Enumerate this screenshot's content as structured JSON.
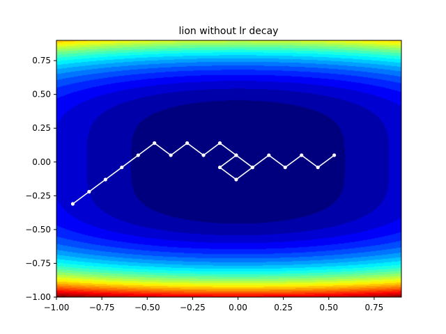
{
  "chart_data": {
    "type": "line",
    "title": "lion without lr decay",
    "xlabel": "",
    "ylabel": "",
    "xlim": [
      -1.0,
      0.9
    ],
    "ylim": [
      -1.0,
      0.9
    ],
    "grid": false,
    "background": "filled contour (jet colormap)",
    "colormap": "jet",
    "line_color": "#ffffff",
    "x_ticks": [
      "−1.00",
      "−0.75",
      "−0.50",
      "−0.25",
      "0.00",
      "0.25",
      "0.50",
      "0.75"
    ],
    "x_tick_values": [
      -1.0,
      -0.75,
      -0.5,
      -0.25,
      0,
      0.25,
      0.5,
      0.75
    ],
    "y_ticks": [
      "−1.00",
      "−0.75",
      "−0.50",
      "−0.25",
      "0.00",
      "0.25",
      "0.50",
      "0.75"
    ],
    "y_tick_values": [
      -1.0,
      -0.75,
      -0.5,
      -0.25,
      0,
      0.25,
      0.5,
      0.75
    ],
    "series": [
      {
        "x": [
          -0.91,
          -0.82,
          -0.73,
          -0.64,
          -0.55,
          -0.46,
          -0.37,
          -0.28,
          -0.19,
          -0.1,
          -0.01,
          -0.1,
          -0.01,
          0.08,
          -0.01,
          0.08,
          0.17,
          0.26,
          0.35,
          0.44,
          0.53
        ],
        "y": [
          -0.31,
          -0.22,
          -0.13,
          -0.04,
          0.05,
          0.14,
          0.05,
          0.14,
          0.05,
          0.14,
          0.05,
          -0.04,
          -0.13,
          -0.04,
          0.05,
          -0.04,
          0.05,
          -0.04,
          0.05,
          -0.04,
          0.05
        ]
      }
    ]
  }
}
